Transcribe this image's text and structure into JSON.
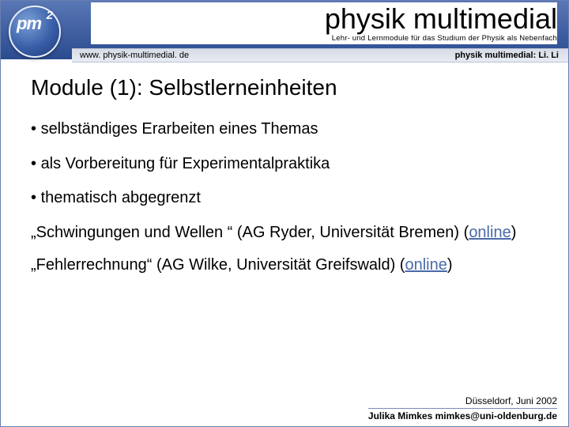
{
  "header": {
    "logo_main": "pm",
    "logo_sup": "2",
    "title": "physik multimedial",
    "subtitle": "Lehr- und Lernmodule für das Studium der Physik als Nebenfach"
  },
  "metabar": {
    "left": "www. physik-multimedial. de",
    "right": "physik multimedial: Li. Li"
  },
  "content": {
    "heading": "Module (1): Selbstlerneinheiten",
    "bullets": [
      "selbständiges Erarbeiten eines Themas",
      "als Vorbereitung für Experimentalpraktika",
      "thematisch abgegrenzt"
    ],
    "para1_pre": "„Schwingungen und Wellen “  (AG Ryder, Universität Bremen) (",
    "para1_link": "online",
    "para1_post": ")",
    "para2_pre": "„Fehlerrechnung“ (AG Wilke, Universität Greifswald) (",
    "para2_link": "online",
    "para2_post": ")"
  },
  "footer": {
    "line1": "Düsseldorf, Juni 2002",
    "line2": "Julika Mimkes mimkes@uni-oldenburg.de"
  },
  "colors": {
    "band_top": "#5a77b5",
    "band_bottom": "#2a4b8f",
    "link": "#4a6aa8",
    "metabar_bg": "#e0e5ef"
  }
}
